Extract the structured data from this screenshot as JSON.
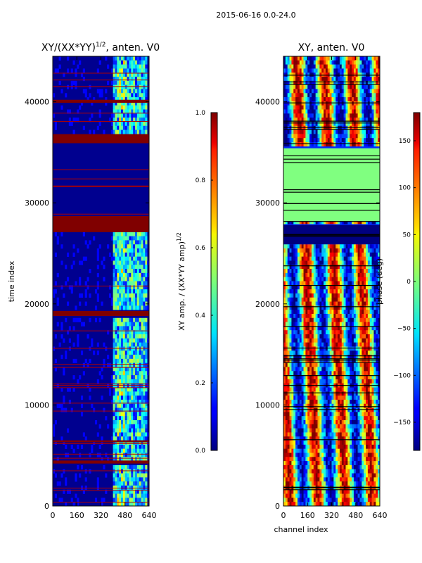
{
  "figure": {
    "suptitle": "2015-06-16 0.0-24.0"
  },
  "chart_data": [
    {
      "type": "heatmap",
      "name": "amplitude",
      "title": "XY/(XX*YY)",
      "title_exponent": "1/2",
      "title_suffix": ", anten. V0",
      "xlabel": "",
      "ylabel": "time index",
      "xlim": [
        0,
        640
      ],
      "ylim": [
        0,
        44500
      ],
      "xticks": [
        0,
        160,
        320,
        480,
        640
      ],
      "yticks": [
        0,
        10000,
        20000,
        30000,
        40000
      ],
      "colormap": "jet",
      "colorbar": {
        "label": "XY amp. / (XX*YY amp)",
        "label_exponent": "1/2",
        "range": [
          0.0,
          1.0
        ],
        "ticks": [
          "0.0",
          "0.2",
          "0.4",
          "0.6",
          "0.8",
          "1.0"
        ]
      },
      "saturated_bands": [
        {
          "t0": 27100,
          "t1": 28700,
          "value": 1.0
        },
        {
          "t0": 35900,
          "t1": 36800,
          "value": 1.0
        },
        {
          "t0": 18800,
          "t1": 19300,
          "value": 1.0
        },
        {
          "t0": 6300,
          "t1": 6500,
          "value": 1.0
        },
        {
          "t0": 4200,
          "t1": 4500,
          "value": 1.0
        },
        {
          "t0": 39900,
          "t1": 40200,
          "value": 1.0
        }
      ]
    },
    {
      "type": "heatmap",
      "name": "phase",
      "title": "XY, anten. V0",
      "xlabel": "channel index",
      "ylabel": "",
      "xlim": [
        0,
        640
      ],
      "ylim": [
        0,
        44500
      ],
      "xticks": [
        0,
        160,
        320,
        480,
        640
      ],
      "yticks": [
        0,
        10000,
        20000,
        30000,
        40000
      ],
      "colormap": "jet",
      "colorbar": {
        "label": "phase (deg)",
        "range": [
          -180,
          180
        ],
        "ticks": [
          "−150",
          "−100",
          "−50",
          "0",
          "50",
          "100",
          "150"
        ]
      },
      "blank_bands": [
        {
          "t0": 28200,
          "t1": 35400,
          "value": 0
        },
        {
          "t0": 25900,
          "t1": 27800,
          "value": -180
        }
      ]
    }
  ]
}
